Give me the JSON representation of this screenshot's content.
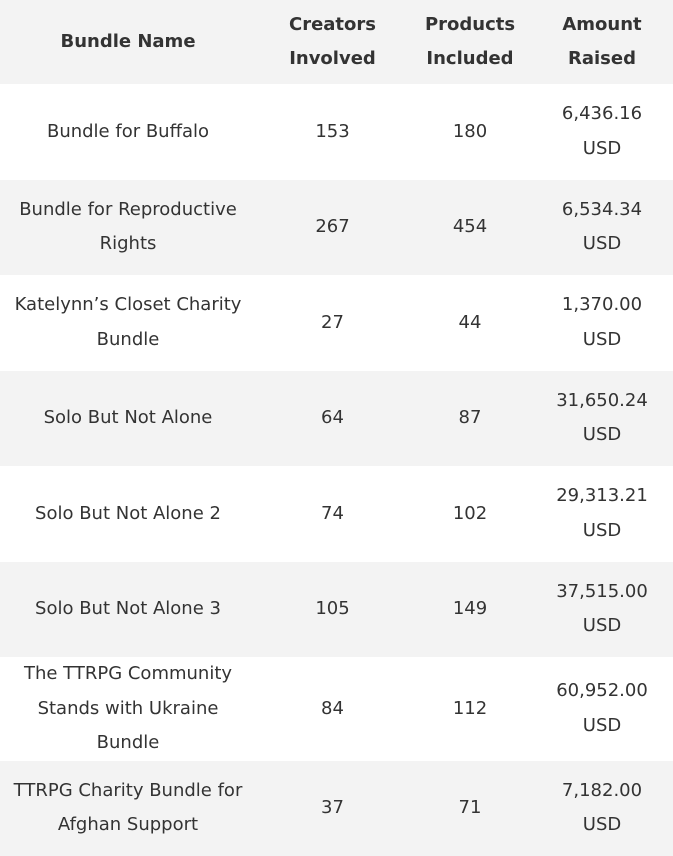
{
  "table": {
    "headers": {
      "bundle_name": "Bundle Name",
      "creators_line1": "Creators",
      "creators_line2": "Involved",
      "products_line1": "Products",
      "products_line2": "Included",
      "amount_line1": "Amount",
      "amount_line2": "Raised"
    },
    "rows": [
      {
        "name": "Bundle for Buffalo",
        "creators": "153",
        "products": "180",
        "amount": "6,436.16",
        "currency": "USD"
      },
      {
        "name": "Bundle for Reproductive Rights",
        "creators": "267",
        "products": "454",
        "amount": "6,534.34",
        "currency": "USD"
      },
      {
        "name": "Katelynn’s Closet Charity Bundle",
        "creators": "27",
        "products": "44",
        "amount": "1,370.00",
        "currency": "USD"
      },
      {
        "name": "Solo But Not Alone",
        "creators": "64",
        "products": "87",
        "amount": "31,650.24",
        "currency": "USD"
      },
      {
        "name": "Solo But Not Alone 2",
        "creators": "74",
        "products": "102",
        "amount": "29,313.21",
        "currency": "USD"
      },
      {
        "name": "Solo But Not Alone 3",
        "creators": "105",
        "products": "149",
        "amount": "37,515.00",
        "currency": "USD"
      },
      {
        "name": "The TTRPG Community Stands with Ukraine Bundle",
        "creators": "84",
        "products": "112",
        "amount": "60,952.00",
        "currency": "USD"
      },
      {
        "name": "TTRPG Charity Bundle for Afghan Support",
        "creators": "37",
        "products": "71",
        "amount": "7,182.00",
        "currency": "USD"
      }
    ]
  }
}
